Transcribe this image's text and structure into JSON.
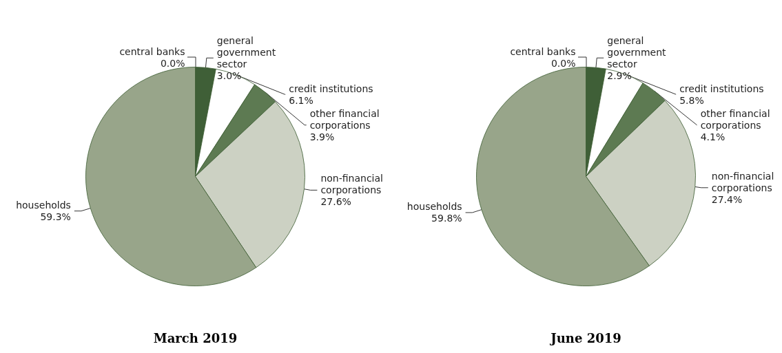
{
  "chart_data": [
    {
      "type": "pie",
      "title": "March 2019",
      "categories": [
        "central banks",
        "general government sector",
        "credit institutions",
        "other financial corporations",
        "non-financial corporations",
        "households"
      ],
      "values": [
        0.0,
        3.0,
        6.1,
        3.9,
        27.6,
        59.3
      ],
      "value_labels": [
        "0.0%",
        "3.0%",
        "6.1%",
        "3.9%",
        "27.6%",
        "59.3%"
      ],
      "colors": [
        "#2f4a2a",
        "#3f5f37",
        "#ffffff",
        "#5d7a52",
        "#ccd1c3",
        "#98a58a"
      ]
    },
    {
      "type": "pie",
      "title": "June 2019",
      "categories": [
        "central banks",
        "general government sector",
        "credit institutions",
        "other financial corporations",
        "non-financial corporations",
        "households"
      ],
      "values": [
        0.0,
        2.9,
        5.8,
        4.1,
        27.4,
        59.8
      ],
      "value_labels": [
        "0.0%",
        "2.9%",
        "5.8%",
        "4.1%",
        "27.4%",
        "59.8%"
      ],
      "colors": [
        "#2f4a2a",
        "#3f5f37",
        "#ffffff",
        "#5d7a52",
        "#ccd1c3",
        "#98a58a"
      ]
    }
  ]
}
